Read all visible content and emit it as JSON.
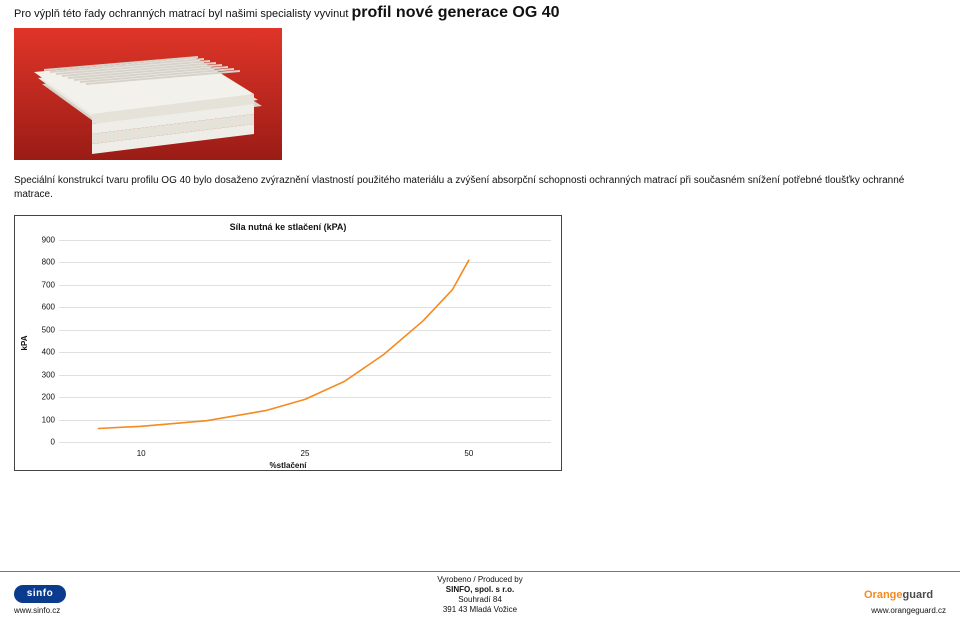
{
  "headline": {
    "pre": "Pro výplň této řady ochranných matrací byl našimi specialisty vyvinut ",
    "strong": "profil nové generace OG 40"
  },
  "photo": {
    "bg_top": "#e03528",
    "bg_bottom": "#b1211a",
    "foam_color": "#f3f1ec",
    "foam_shadow": "#d7d3cb"
  },
  "paragraph": "Speciální konstrukcí tvaru profilu OG 40 bylo dosaženo zvýraznění vlastností použitého materiálu a zvýšení absorpční schopnosti ochranných matrací při současném snížení potřebné tloušťky ochranné matrace.",
  "chart": {
    "type": "line",
    "title": "Síla nutná ke stlačení (kPA)",
    "ylabel": "kPA",
    "xlabel": "%stlačení",
    "ylim": [
      0,
      900
    ],
    "ytick_step": 100,
    "x_categories": [
      "10",
      "25",
      "50"
    ],
    "x_positions": [
      0.167,
      0.5,
      0.833
    ],
    "series": {
      "color": "#f58a1f",
      "line_width": 1.6,
      "points": [
        {
          "xf": 0.08,
          "y": 60
        },
        {
          "xf": 0.167,
          "y": 70
        },
        {
          "xf": 0.3,
          "y": 95
        },
        {
          "xf": 0.42,
          "y": 140
        },
        {
          "xf": 0.5,
          "y": 190
        },
        {
          "xf": 0.58,
          "y": 270
        },
        {
          "xf": 0.66,
          "y": 390
        },
        {
          "xf": 0.74,
          "y": 540
        },
        {
          "xf": 0.8,
          "y": 680
        },
        {
          "xf": 0.833,
          "y": 810
        }
      ]
    },
    "grid_color": "#bbbbbb",
    "background_color": "#ffffff",
    "border_color": "#444444",
    "label_fontsize": 8,
    "title_fontsize": 9
  },
  "footer": {
    "produced": "Vyrobeno / Produced by",
    "company": "SINFO, spol. s r.o.",
    "street": "Souhradí 84",
    "city": "391 43  Mladá Vožice",
    "left_url": "www.sinfo.cz",
    "right_url": "www.orangeguard.cz",
    "sinfo_label": "sinfo",
    "orangeguard_label1": "Orange",
    "orangeguard_label2": "guard",
    "sinfo_bg": "#0a3b8c",
    "og_color1": "#f58a1f",
    "og_color2": "#4b4b4b"
  }
}
